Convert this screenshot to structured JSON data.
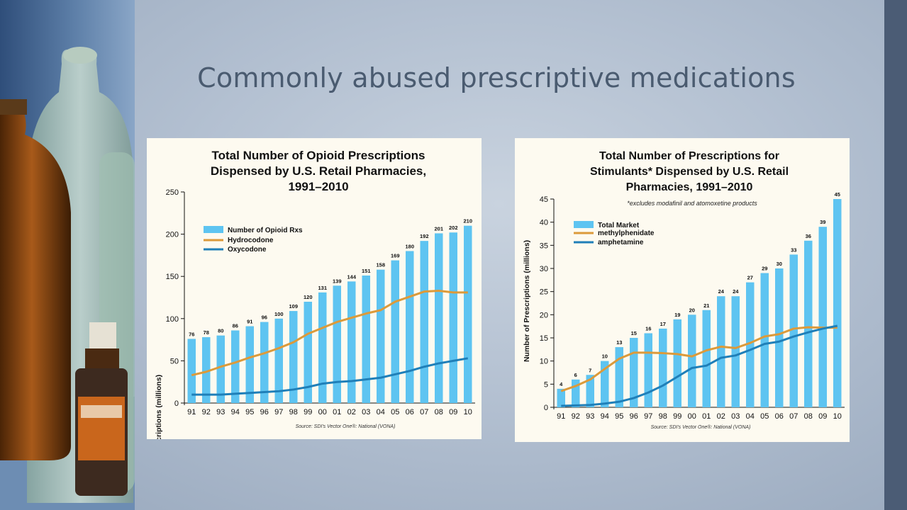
{
  "slide": {
    "title": "Commonly abused prescriptive medications"
  },
  "theme": {
    "bar_color": "#5ec4f1",
    "hydrocodone_color": "#dc9a3a",
    "oxycodone_color": "#1f7fb8"
  },
  "chart_data": [
    {
      "type": "bar",
      "title_lines": [
        "Total Number of Opioid Prescriptions",
        "Dispensed by U.S. Retail Pharmacies,",
        "1991–2010"
      ],
      "note": "",
      "ylabel": "Number of Prescriptions (millions)",
      "xlabel": "",
      "ylim": [
        0,
        250
      ],
      "yticks": [
        0,
        50,
        100,
        150,
        200,
        250
      ],
      "categories": [
        "91",
        "92",
        "93",
        "94",
        "95",
        "96",
        "97",
        "98",
        "99",
        "00",
        "01",
        "02",
        "03",
        "04",
        "05",
        "06",
        "07",
        "08",
        "09",
        "10"
      ],
      "series": [
        {
          "name": "Number of Opioid Rxs",
          "kind": "bar",
          "color": "#5ec4f1",
          "values": [
            76,
            78,
            80,
            86,
            91,
            96,
            100,
            109,
            120,
            131,
            139,
            144,
            151,
            158,
            169,
            180,
            192,
            201,
            202,
            210
          ]
        },
        {
          "name": "Hydrocodone",
          "kind": "line",
          "color": "#dc9a3a",
          "values": [
            33,
            37,
            43,
            48,
            54,
            59,
            65,
            72,
            82,
            89,
            96,
            101,
            106,
            110,
            120,
            126,
            132,
            133,
            131,
            131
          ]
        },
        {
          "name": "Oxycodone",
          "kind": "line",
          "color": "#1f7fb8",
          "values": [
            10,
            10,
            10,
            11,
            12,
            13,
            14,
            16,
            19,
            23,
            25,
            26,
            28,
            30,
            34,
            38,
            43,
            47,
            50,
            53
          ]
        }
      ],
      "legend_position": "top-left",
      "source": "Source: SDI's Vector One®: National (VONA)"
    },
    {
      "type": "bar",
      "title_lines": [
        "Total Number of Prescriptions for",
        "Stimulants* Dispensed by U.S. Retail",
        "Pharmacies, 1991–2010"
      ],
      "note": "*excludes modafinil and atomoxetine products",
      "ylabel": "Number of Prescriptions (millions)",
      "xlabel": "",
      "ylim": [
        0,
        45
      ],
      "yticks": [
        0,
        5,
        10,
        15,
        20,
        25,
        30,
        35,
        40,
        45
      ],
      "categories": [
        "91",
        "92",
        "93",
        "94",
        "95",
        "96",
        "97",
        "98",
        "99",
        "00",
        "01",
        "02",
        "03",
        "04",
        "05",
        "06",
        "07",
        "08",
        "09",
        "10"
      ],
      "series": [
        {
          "name": "Total Market",
          "kind": "bar",
          "color": "#5ec4f1",
          "values": [
            4,
            6,
            7,
            10,
            13,
            15,
            16,
            17,
            19,
            20,
            21,
            24,
            24,
            27,
            29,
            30,
            33,
            36,
            39,
            45
          ]
        },
        {
          "name": "methylphenidate",
          "kind": "line",
          "color": "#dc9a3a",
          "values": [
            3.5,
            4.6,
            6,
            8.3,
            10.5,
            11.8,
            11.8,
            11.7,
            11.5,
            11,
            12.3,
            13.1,
            12.8,
            13.9,
            15.3,
            15.8,
            17,
            17.3,
            17.2,
            17.2
          ]
        },
        {
          "name": "amphetamine",
          "kind": "line",
          "color": "#1f7fb8",
          "values": [
            0.3,
            0.4,
            0.5,
            0.8,
            1.2,
            2,
            3.2,
            4.7,
            6.6,
            8.5,
            9,
            10.7,
            11.2,
            12.4,
            13.7,
            14.2,
            15.3,
            16.2,
            17,
            17.6
          ]
        }
      ],
      "legend_position": "top-left",
      "source": "Source: SDI's Vector One®: National (VONA)"
    }
  ]
}
